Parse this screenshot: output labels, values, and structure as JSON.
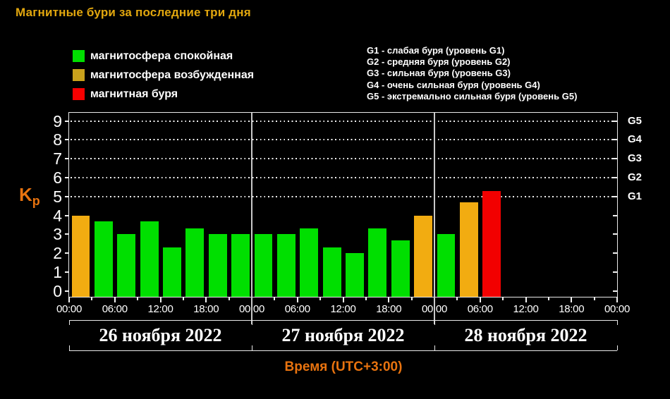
{
  "title": "Магнитные бури за последние три дня",
  "legend": {
    "items": [
      {
        "name": "quiet",
        "label": "магнитосфера спокойная",
        "color": "#00DF00"
      },
      {
        "name": "excited",
        "label": "магнитосфера возбужденная",
        "color": "#C9A21C"
      },
      {
        "name": "storm",
        "label": "магнитная буря",
        "color": "#F80000"
      }
    ]
  },
  "storm_levels": [
    "G1 - слабая буря (уровень G1)",
    "G2 - средняя буря (уровень G2)",
    "G3 - сильная буря (уровень G3)",
    "G4 - очень сильная буря (уровень G4)",
    "G5 - экстремально сильная буря (уровень G5)"
  ],
  "ylabel_main": "K",
  "ylabel_sub": "p",
  "chart_data": {
    "type": "bar",
    "title": "Магнитные бури за последние три дня",
    "ylabel": "Kp",
    "xlabel": "Время (UTC+3:00)",
    "ylim": [
      0,
      9
    ],
    "ytick_labels": [
      "0",
      "1",
      "2",
      "3",
      "4",
      "5",
      "6",
      "7",
      "8",
      "9"
    ],
    "grid_levels": [
      5,
      6,
      7,
      8,
      9
    ],
    "g_labels": [
      {
        "kp": 5,
        "text": "G1"
      },
      {
        "kp": 6,
        "text": "G2"
      },
      {
        "kp": 7,
        "text": "G3"
      },
      {
        "kp": 8,
        "text": "G4"
      },
      {
        "kp": 9,
        "text": "G5"
      }
    ],
    "hours_per_bar": 3,
    "x_tick_step_hours": 6,
    "x_tick_labels": [
      "00:00",
      "06:00",
      "12:00",
      "18:00",
      "00:00",
      "06:00",
      "12:00",
      "18:00",
      "00:00",
      "06:00",
      "12:00",
      "18:00",
      "00:00"
    ],
    "days": [
      {
        "date": "26 ноября 2022",
        "values": [
          4.0,
          3.7,
          3.0,
          3.7,
          2.3,
          3.3,
          3.0,
          3.0
        ]
      },
      {
        "date": "27 ноября 2022",
        "values": [
          3.0,
          3.0,
          3.3,
          2.3,
          2.0,
          3.3,
          2.7,
          4.0
        ]
      },
      {
        "date": "28 ноября 2022",
        "values": [
          3.0,
          4.7,
          5.3
        ]
      }
    ],
    "bar_palette": {
      "quiet": "#00DF00",
      "excited": "#F2AC11",
      "storm": "#F20000"
    },
    "color_rules": {
      "excited_from_kp": 4,
      "storm_from_kp": 5
    },
    "legend_position": "top",
    "grid": "dotted horizontal at G levels"
  }
}
